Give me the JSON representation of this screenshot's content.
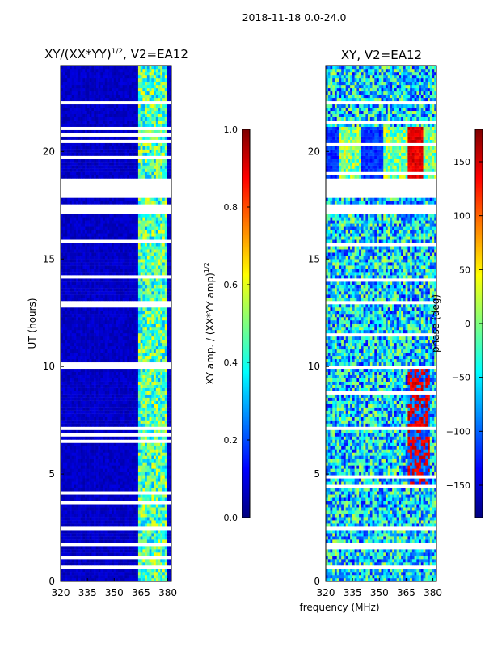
{
  "figure_title": "2018-11-18 0.0-24.0",
  "xlabel_shared": "frequency (MHz)",
  "colors": {
    "jet": [
      "#00007f",
      "#0000ff",
      "#007fff",
      "#00ffff",
      "#7fff7f",
      "#ffff00",
      "#ff7f00",
      "#ff0000",
      "#7f0000"
    ],
    "flag_white": "#ffffff"
  },
  "chart_data": [
    {
      "type": "heatmap",
      "id": "amp",
      "title": "XY/(XX*YY)^{1/2}, V2=EA12",
      "title_main": "XY/(XX*YY)",
      "title_sup": "1/2",
      "title_tail": ", V2=EA12",
      "xlabel": "",
      "ylabel": "UT (hours)",
      "x_ticks": [
        "320",
        "335",
        "350",
        "365",
        "380"
      ],
      "x_tick_values": [
        320,
        335,
        350,
        365,
        380
      ],
      "y_ticks": [
        "0",
        "5",
        "10",
        "15",
        "20"
      ],
      "y_tick_values": [
        0,
        5,
        10,
        15,
        20
      ],
      "xlim": [
        320,
        382
      ],
      "ylim": [
        0,
        24
      ],
      "colorbar": {
        "label_main": "XY amp. / (XX*YY amp)",
        "label_sup": "1/2",
        "ticks": [
          "0.0",
          "0.2",
          "0.4",
          "0.6",
          "0.8",
          "1.0"
        ],
        "tick_values": [
          0.0,
          0.2,
          0.4,
          0.6,
          0.8,
          1.0
        ],
        "range": [
          0.0,
          1.0
        ]
      },
      "description": "Mostly near 0 below 363 MHz; values 0.3-0.6 between ~363-380 MHz",
      "flagged_hours": [
        [
          17.1,
          17.6
        ],
        [
          17.8,
          18.4
        ],
        [
          18.6,
          18.7
        ],
        [
          21.1,
          21.2
        ],
        [
          22.2,
          22.3
        ],
        [
          9.9,
          10.0
        ],
        [
          7.1,
          7.2
        ],
        [
          4.6,
          4.7
        ],
        [
          2.4,
          2.5
        ],
        [
          1.7,
          1.8
        ],
        [
          0.6,
          0.7
        ]
      ]
    },
    {
      "type": "heatmap",
      "id": "phase",
      "title": "XY, V2=EA12",
      "xlabel": "",
      "ylabel": "",
      "x_ticks": [
        "320",
        "335",
        "350",
        "365",
        "380"
      ],
      "x_tick_values": [
        320,
        335,
        350,
        365,
        380
      ],
      "y_ticks": [
        "0",
        "5",
        "10",
        "15",
        "20"
      ],
      "y_tick_values": [
        0,
        5,
        10,
        15,
        20
      ],
      "xlim": [
        320,
        382
      ],
      "ylim": [
        0,
        24
      ],
      "colorbar": {
        "label_main": "phase (deg)",
        "ticks": [
          "−150",
          "−100",
          "−50",
          "0",
          "50",
          "100",
          "150"
        ],
        "tick_values": [
          -150,
          -100,
          -50,
          0,
          50,
          100,
          150
        ],
        "range": [
          -180,
          180
        ]
      },
      "description": "Phase in degrees; mixed values, mostly -50 to 50, strong +/-180 features near 20h",
      "flagged_hours": [
        [
          17.1,
          17.6
        ],
        [
          17.8,
          18.4
        ],
        [
          18.6,
          18.7
        ],
        [
          21.1,
          21.2
        ],
        [
          22.2,
          22.3
        ],
        [
          9.9,
          10.0
        ],
        [
          7.1,
          7.2
        ],
        [
          4.6,
          4.7
        ],
        [
          2.4,
          2.5
        ],
        [
          1.7,
          1.8
        ],
        [
          0.6,
          0.7
        ]
      ]
    }
  ]
}
